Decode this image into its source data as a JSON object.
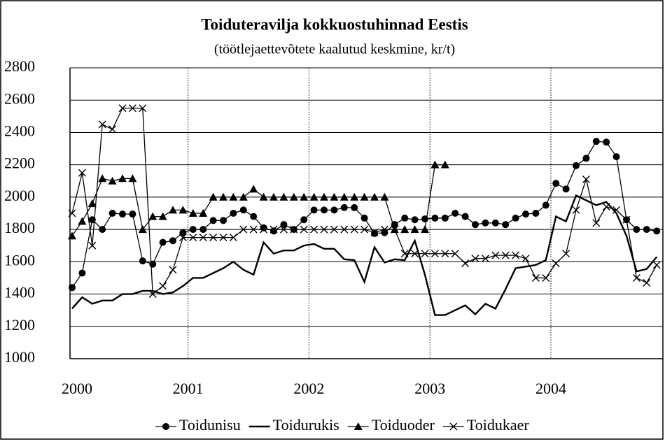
{
  "chart_data": {
    "type": "line",
    "title": "Toiduteravilja kokkuostuhinnad Eestis",
    "subtitle": "(töötlejaettevõtete kaalutud keskmine, kr/t)",
    "categories": [
      "2000",
      null,
      null,
      null,
      null,
      null,
      null,
      null,
      null,
      null,
      null,
      null,
      "2001",
      null,
      null,
      null,
      null,
      null,
      null,
      null,
      null,
      null,
      null,
      null,
      "2002",
      null,
      null,
      null,
      null,
      null,
      null,
      null,
      null,
      null,
      null,
      null,
      "2003",
      null,
      null,
      null,
      null,
      null,
      null,
      null,
      null,
      null,
      null,
      null,
      "2004",
      null,
      null,
      null,
      null,
      null,
      null,
      null,
      null,
      null,
      null
    ],
    "ylim": [
      1000,
      2800
    ],
    "yticks": [
      1000,
      1200,
      1400,
      1600,
      1800,
      2000,
      2200,
      2400,
      2600,
      2800
    ],
    "grid": true,
    "series": [
      {
        "name": "Toidunisu",
        "color": "#000000",
        "marker": "circle",
        "values": [
          1440,
          1530,
          1860,
          1800,
          1900,
          1895,
          1895,
          1605,
          1585,
          1720,
          1730,
          1780,
          1800,
          1800,
          1855,
          1855,
          1900,
          1920,
          1880,
          1810,
          1790,
          1830,
          1800,
          1860,
          1920,
          1920,
          1920,
          1935,
          1935,
          1870,
          1775,
          1780,
          1830,
          1870,
          1860,
          1865,
          1870,
          1870,
          1900,
          1880,
          1830,
          1840,
          1840,
          1830,
          1870,
          1895,
          1900,
          1950,
          2085,
          2050,
          2195,
          2240,
          2345,
          2340,
          2250,
          1860,
          1800,
          1800,
          1790
        ]
      },
      {
        "name": "Toidurukis",
        "color": "#000000",
        "marker": "none",
        "values": [
          1310,
          1380,
          1340,
          1360,
          1360,
          1400,
          1400,
          1420,
          1420,
          1400,
          1410,
          1450,
          1500,
          1500,
          1530,
          1560,
          1600,
          1550,
          1520,
          1720,
          1650,
          1670,
          1670,
          1700,
          1710,
          1680,
          1680,
          1615,
          1610,
          1475,
          1690,
          1595,
          1615,
          1610,
          1730,
          1520,
          1270,
          1270,
          1300,
          1330,
          1275,
          1340,
          1310,
          1430,
          1560,
          1570,
          1580,
          1610,
          1880,
          1850,
          2010,
          1980,
          1950,
          1970,
          1900,
          1760,
          1540,
          1555,
          1630
        ]
      },
      {
        "name": "Toiduoder",
        "color": "#000000",
        "marker": "triangle",
        "values": [
          1760,
          1850,
          1960,
          2115,
          2100,
          2115,
          2115,
          1800,
          1880,
          1880,
          1920,
          1920,
          1900,
          1900,
          2000,
          2000,
          2000,
          2000,
          2050,
          2000,
          2000,
          2000,
          2000,
          2000,
          2000,
          2000,
          2000,
          2000,
          2000,
          2000,
          2000,
          2000,
          1800,
          1800,
          1800,
          1800,
          2200,
          2200,
          null,
          null,
          null,
          null,
          null,
          null,
          null,
          null,
          null,
          null,
          null,
          null,
          null,
          null,
          null,
          null,
          null,
          null,
          null,
          null,
          null
        ]
      },
      {
        "name": "Toidukaer",
        "color": "#000000",
        "marker": "x",
        "values": [
          1900,
          2150,
          1700,
          2450,
          2420,
          2550,
          2550,
          2550,
          1400,
          1450,
          1550,
          1750,
          1750,
          1750,
          1750,
          1750,
          1750,
          1800,
          1800,
          1800,
          1800,
          1800,
          1800,
          1800,
          1800,
          1800,
          1800,
          1800,
          1800,
          1800,
          1780,
          1800,
          1800,
          1650,
          1650,
          1650,
          1650,
          1650,
          1650,
          1590,
          1620,
          1620,
          1640,
          1640,
          1640,
          1620,
          1500,
          1500,
          1590,
          1650,
          1920,
          2110,
          1840,
          1940,
          1920,
          1860,
          1500,
          1470,
          1580
        ]
      }
    ]
  }
}
